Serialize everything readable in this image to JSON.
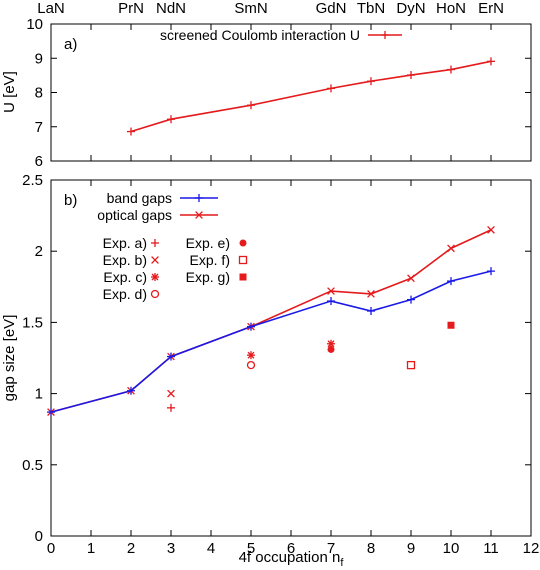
{
  "elements": [
    "LaN",
    "PrN",
    "NdN",
    "SmN",
    "GdN",
    "TbN",
    "DyN",
    "HoN",
    "ErN"
  ],
  "elements_nf": [
    0,
    2,
    3,
    5,
    7,
    8,
    9,
    10,
    11
  ],
  "chart_data": [
    {
      "type": "line",
      "panel_label": "a)",
      "ylabel": "U [eV]",
      "xlim": [
        0,
        12
      ],
      "ylim": [
        6,
        10
      ],
      "yticks": [
        6,
        7,
        8,
        9,
        10
      ],
      "legend_position": "top-right",
      "series": [
        {
          "name": "screened Coulomb interaction U",
          "color": "#e41a1c",
          "marker": "plus",
          "x": [
            2,
            3,
            5,
            7,
            8,
            9,
            10,
            11
          ],
          "y": [
            6.86,
            7.22,
            7.63,
            8.12,
            8.33,
            8.51,
            8.67,
            8.91
          ]
        }
      ]
    },
    {
      "type": "line",
      "panel_label": "b)",
      "xlabel": "4f occupation n",
      "xlabel_sub": "f",
      "ylabel": "gap size [eV]",
      "xlim": [
        0,
        12
      ],
      "ylim": [
        0,
        2.5
      ],
      "xticks": [
        0,
        1,
        2,
        3,
        4,
        5,
        6,
        7,
        8,
        9,
        10,
        11,
        12
      ],
      "yticks": [
        "0",
        "0.5",
        "1",
        "1.5",
        "2",
        "2.5"
      ],
      "legend_position": "top-left",
      "series": [
        {
          "name": "band gaps",
          "color": "#1a1ae6",
          "marker": "plus",
          "x": [
            0,
            2,
            3,
            5,
            7,
            8,
            9,
            10,
            11
          ],
          "y": [
            0.87,
            1.02,
            1.26,
            1.47,
            1.65,
            1.58,
            1.66,
            1.79,
            1.86
          ]
        },
        {
          "name": "optical gaps",
          "color": "#e41a1c",
          "marker": "cross",
          "x": [
            0,
            2,
            3,
            5,
            7,
            8,
            9,
            10,
            11
          ],
          "y": [
            0.87,
            1.02,
            1.26,
            1.47,
            1.72,
            1.7,
            1.81,
            2.02,
            2.15
          ]
        }
      ],
      "experiments": [
        {
          "name": "Exp. a)",
          "marker": "plus",
          "x": [
            3
          ],
          "y": [
            0.9
          ]
        },
        {
          "name": "Exp. b)",
          "marker": "cross",
          "x": [
            3
          ],
          "y": [
            1.0
          ]
        },
        {
          "name": "Exp. c)",
          "marker": "star",
          "x": [
            5,
            7
          ],
          "y": [
            1.27,
            1.35
          ]
        },
        {
          "name": "Exp. d)",
          "marker": "circle-open",
          "x": [
            5
          ],
          "y": [
            1.2
          ]
        },
        {
          "name": "Exp. e)",
          "marker": "circle-filled",
          "x": [
            7
          ],
          "y": [
            1.31
          ]
        },
        {
          "name": "Exp. f)",
          "marker": "square-open",
          "x": [
            9
          ],
          "y": [
            1.2
          ]
        },
        {
          "name": "Exp. g)",
          "marker": "square-filled",
          "x": [
            10
          ],
          "y": [
            1.48
          ]
        }
      ],
      "experiment_color": "#e41a1c"
    }
  ]
}
